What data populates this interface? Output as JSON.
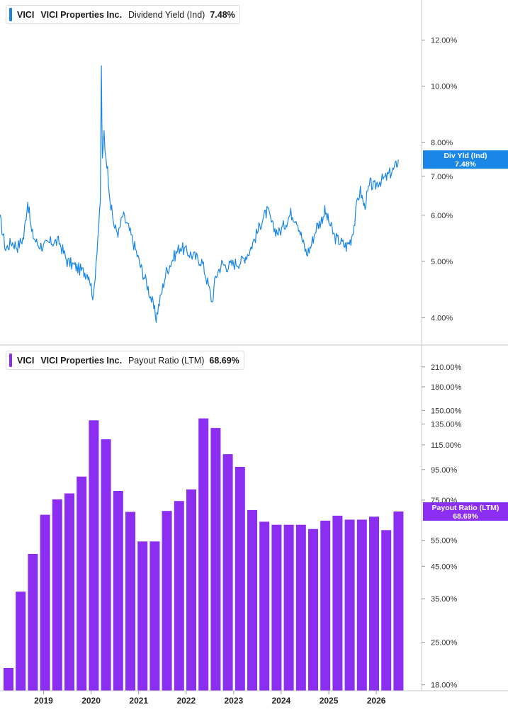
{
  "panels": {
    "yield_legend": {
      "ticker": "VICI",
      "name": "VICI Properties Inc.",
      "metric": "Dividend Yield (Ind)",
      "value": "7.48%",
      "color": "#1a87e6"
    },
    "payout_legend": {
      "ticker": "VICI",
      "name": "VICI Properties Inc.",
      "metric": "Payout Ratio (LTM)",
      "value": "68.69%",
      "color": "#8b2ef2"
    }
  },
  "chart_data": [
    {
      "type": "line",
      "title": "",
      "y_scale": "log",
      "ylim": [
        3.85,
        13.3
      ],
      "yticks": [
        4.0,
        5.0,
        6.0,
        7.0,
        8.0,
        10.0,
        12.0
      ],
      "ytick_labels": [
        "4.00%",
        "5.00%",
        "6.00%",
        "7.00%",
        "8.00%",
        "10.00%",
        "12.00%"
      ],
      "series": [
        {
          "name": "Div Yld (Ind)",
          "color": "#1a87e6",
          "badge": [
            "Div Yld (Ind)",
            "7.48%"
          ],
          "points": [
            [
              "2018-02-01",
              5.9
            ],
            [
              "2018-03-15",
              5.25
            ],
            [
              "2018-05-01",
              5.4
            ],
            [
              "2018-06-15",
              5.3
            ],
            [
              "2018-08-01",
              5.5
            ],
            [
              "2018-09-01",
              6.35
            ],
            [
              "2018-10-01",
              5.6
            ],
            [
              "2018-11-15",
              5.35
            ],
            [
              "2019-01-01",
              5.3
            ],
            [
              "2019-03-01",
              5.4
            ],
            [
              "2019-05-01",
              5.4
            ],
            [
              "2019-07-01",
              5.0
            ],
            [
              "2019-09-01",
              4.9
            ],
            [
              "2019-11-01",
              4.8
            ],
            [
              "2019-12-15",
              4.75
            ],
            [
              "2020-01-20",
              4.3
            ],
            [
              "2020-03-12",
              6.2
            ],
            [
              "2020-03-20",
              10.6
            ],
            [
              "2020-03-28",
              7.2
            ],
            [
              "2020-04-10",
              8.3
            ],
            [
              "2020-05-01",
              7.4
            ],
            [
              "2020-06-01",
              6.2
            ],
            [
              "2020-07-01",
              5.7
            ],
            [
              "2020-08-01",
              5.6
            ],
            [
              "2020-09-01",
              6.0
            ],
            [
              "2020-10-15",
              5.7
            ],
            [
              "2020-12-01",
              5.3
            ],
            [
              "2021-01-15",
              4.9
            ],
            [
              "2021-03-01",
              4.6
            ],
            [
              "2021-04-15",
              4.25
            ],
            [
              "2021-05-15",
              4.0
            ],
            [
              "2021-06-15",
              4.3
            ],
            [
              "2021-08-01",
              4.8
            ],
            [
              "2021-10-01",
              5.1
            ],
            [
              "2021-11-15",
              5.3
            ],
            [
              "2022-01-01",
              5.2
            ],
            [
              "2022-03-01",
              5.1
            ],
            [
              "2022-05-01",
              5.0
            ],
            [
              "2022-06-15",
              4.6
            ],
            [
              "2022-07-20",
              4.25
            ],
            [
              "2022-08-15",
              4.7
            ],
            [
              "2022-10-01",
              4.95
            ],
            [
              "2022-11-15",
              4.9
            ],
            [
              "2023-01-01",
              4.95
            ],
            [
              "2023-03-01",
              5.0
            ],
            [
              "2023-05-01",
              5.2
            ],
            [
              "2023-07-01",
              5.6
            ],
            [
              "2023-08-15",
              5.95
            ],
            [
              "2023-09-20",
              6.1
            ],
            [
              "2023-11-01",
              5.7
            ],
            [
              "2023-12-15",
              5.6
            ],
            [
              "2024-02-01",
              5.8
            ],
            [
              "2024-03-15",
              6.05
            ],
            [
              "2024-05-01",
              5.9
            ],
            [
              "2024-06-15",
              5.4
            ],
            [
              "2024-07-15",
              5.15
            ],
            [
              "2024-08-15",
              5.3
            ],
            [
              "2024-10-01",
              5.75
            ],
            [
              "2024-11-01",
              5.85
            ],
            [
              "2024-12-01",
              6.1
            ],
            [
              "2025-01-01",
              5.85
            ],
            [
              "2025-02-15",
              5.5
            ],
            [
              "2025-04-01",
              5.4
            ],
            [
              "2025-05-15",
              5.3
            ],
            [
              "2025-06-20",
              5.45
            ],
            [
              "2025-07-20",
              5.85
            ],
            [
              "2025-08-10",
              6.4
            ],
            [
              "2025-09-01",
              6.6
            ],
            [
              "2025-10-01",
              6.2
            ],
            [
              "2025-10-20",
              6.45
            ],
            [
              "2025-11-15",
              6.8
            ],
            [
              "2025-12-15",
              6.7
            ],
            [
              "2026-01-15",
              6.85
            ],
            [
              "2026-02-15",
              6.9
            ],
            [
              "2026-03-15",
              6.95
            ],
            [
              "2026-04-20",
              7.1
            ],
            [
              "2026-05-20",
              7.2
            ],
            [
              "2026-06-20",
              7.48
            ]
          ]
        }
      ]
    },
    {
      "type": "bar",
      "title": "",
      "y_scale": "log",
      "ylim": [
        17.2,
        238.0
      ],
      "yticks": [
        18,
        25,
        35,
        45,
        55,
        75,
        95,
        115,
        135,
        150,
        180,
        210
      ],
      "ytick_labels": [
        "18.00%",
        "25.00%",
        "35.00%",
        "45.00%",
        "55.00%",
        "75.00%",
        "95.00%",
        "115.00%",
        "135.00%",
        "150.00%",
        "180.00%",
        "210.00%"
      ],
      "x_labels": [
        "2019",
        "2020",
        "2021",
        "2022",
        "2023",
        "2024",
        "2025",
        "2026"
      ],
      "series": [
        {
          "name": "Payout Ratio (LTM)",
          "color": "#8b2ef2",
          "badge": [
            "Payout Ratio (LTM)",
            "68.69%"
          ],
          "values": [
            [
              "2018-06-30",
              20.5
            ],
            [
              "2018-09-30",
              37.0
            ],
            [
              "2018-12-31",
              49.5
            ],
            [
              "2019-03-31",
              67.0
            ],
            [
              "2019-06-30",
              75.5
            ],
            [
              "2019-09-30",
              79.0
            ],
            [
              "2019-12-31",
              90.0
            ],
            [
              "2020-03-31",
              139.0
            ],
            [
              "2020-06-30",
              120.0
            ],
            [
              "2020-09-30",
              80.5
            ],
            [
              "2020-12-31",
              68.5
            ],
            [
              "2021-03-31",
              54.5
            ],
            [
              "2021-06-30",
              54.5
            ],
            [
              "2021-09-30",
              69.0
            ],
            [
              "2021-12-31",
              74.5
            ],
            [
              "2022-03-31",
              81.5
            ],
            [
              "2022-06-30",
              141.0
            ],
            [
              "2022-09-30",
              131.0
            ],
            [
              "2022-12-31",
              107.0
            ],
            [
              "2023-03-31",
              97.0
            ],
            [
              "2023-06-30",
              69.5
            ],
            [
              "2023-09-30",
              63.5
            ],
            [
              "2023-12-31",
              62.0
            ],
            [
              "2024-03-31",
              62.0
            ],
            [
              "2024-06-30",
              62.0
            ],
            [
              "2024-09-30",
              60.0
            ],
            [
              "2024-12-31",
              64.0
            ],
            [
              "2025-03-31",
              66.5
            ],
            [
              "2025-06-30",
              64.5
            ],
            [
              "2025-09-30",
              64.5
            ],
            [
              "2025-12-31",
              66.0
            ],
            [
              "2026-03-31",
              59.5
            ],
            [
              "2026-06-30",
              68.69
            ]
          ]
        }
      ]
    }
  ]
}
